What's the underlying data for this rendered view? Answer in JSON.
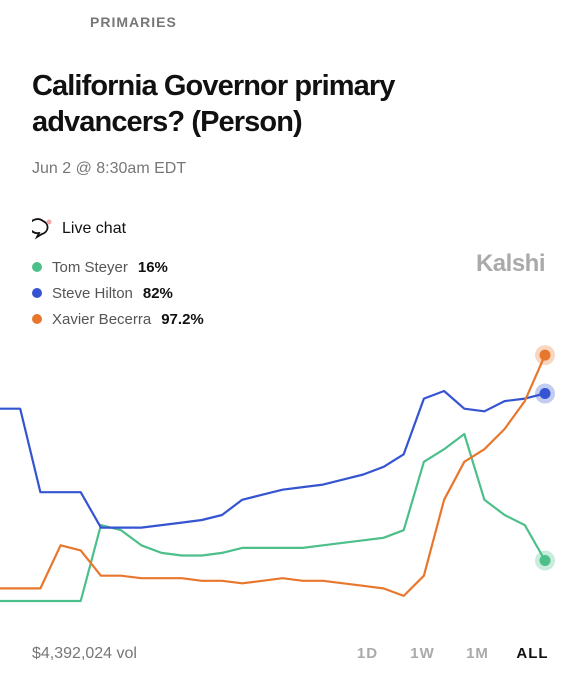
{
  "category": "PRIMARIES",
  "live_chat": "Live chat",
  "brand": "Kalshi",
  "volume": "$4,392,024 vol",
  "ranges": [
    "1D",
    "1W",
    "1M",
    "ALL"
  ],
  "chart_data": {
    "type": "line",
    "title": "California Governor primary advancers? (Person)",
    "subtitle": "Jun 2 @ 8:30am EDT",
    "ylim": [
      0,
      100
    ],
    "series": [
      {
        "name": "Tom Steyer",
        "color": "#4cbf8a",
        "value_label": "16%",
        "values": [
          0,
          0,
          0,
          0,
          0,
          30,
          28,
          22,
          19,
          18,
          18,
          19,
          21,
          21,
          21,
          21,
          22,
          23,
          24,
          25,
          28,
          55,
          60,
          66,
          40,
          34,
          30,
          16
        ]
      },
      {
        "name": "Steve Hilton",
        "color": "#3454d1",
        "value_label": "82%",
        "values": [
          76,
          76,
          43,
          43,
          43,
          29,
          29,
          29,
          30,
          31,
          32,
          34,
          40,
          42,
          44,
          45,
          46,
          48,
          50,
          53,
          58,
          80,
          83,
          76,
          75,
          79,
          80,
          82
        ]
      },
      {
        "name": "Xavier Becerra",
        "color": "#e8772e",
        "value_label": "97.2%",
        "values": [
          5,
          5,
          5,
          22,
          20,
          10,
          10,
          9,
          9,
          9,
          8,
          8,
          7,
          8,
          9,
          8,
          8,
          7,
          6,
          5,
          2,
          10,
          40,
          55,
          60,
          68,
          79,
          97.2
        ]
      }
    ]
  }
}
